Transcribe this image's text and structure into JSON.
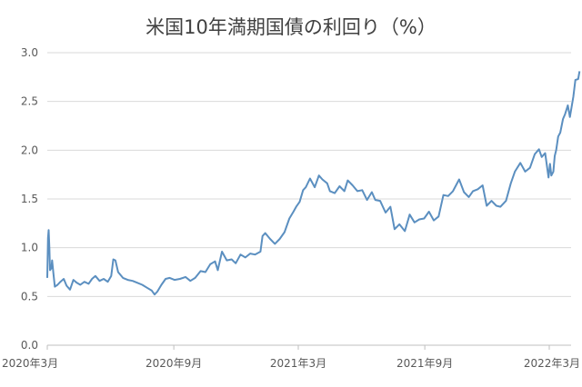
{
  "chart_data": {
    "type": "line",
    "title": "米国10年満期国債の利回り（%）",
    "xlabel": "",
    "ylabel": "",
    "ylim": [
      0,
      3.0
    ],
    "y_ticks": [
      "0.0",
      "0.5",
      "1.0",
      "1.5",
      "2.0",
      "2.5",
      "3.0"
    ],
    "x_ticks": [
      {
        "label": "2020年3月",
        "date": "2020-03-01"
      },
      {
        "label": "2020年9月",
        "date": "2020-09-01"
      },
      {
        "label": "2021年3月",
        "date": "2021-03-01"
      },
      {
        "label": "2021年9月",
        "date": "2021-09-01"
      },
      {
        "label": "2022年3月",
        "date": "2022-03-01"
      }
    ],
    "x_range": [
      "2020-03-01",
      "2022-03-12"
    ],
    "grid": "horizontal",
    "series": [
      {
        "color": "#5b8fc0",
        "points": [
          [
            "2020-03-01",
            0.69
          ],
          [
            "2020-03-02",
            1.1
          ],
          [
            "2020-03-03",
            1.18
          ],
          [
            "2020-03-04",
            1.0
          ],
          [
            "2020-03-05",
            0.77
          ],
          [
            "2020-03-07",
            0.79
          ],
          [
            "2020-03-08",
            0.87
          ],
          [
            "2020-03-10",
            0.73
          ],
          [
            "2020-03-12",
            0.6
          ],
          [
            "2020-03-16",
            0.62
          ],
          [
            "2020-03-20",
            0.65
          ],
          [
            "2020-03-25",
            0.68
          ],
          [
            "2020-03-29",
            0.61
          ],
          [
            "2020-04-03",
            0.57
          ],
          [
            "2020-04-08",
            0.67
          ],
          [
            "2020-04-13",
            0.64
          ],
          [
            "2020-04-18",
            0.62
          ],
          [
            "2020-04-24",
            0.65
          ],
          [
            "2020-04-30",
            0.63
          ],
          [
            "2020-05-05",
            0.68
          ],
          [
            "2020-05-10",
            0.71
          ],
          [
            "2020-05-16",
            0.66
          ],
          [
            "2020-05-22",
            0.68
          ],
          [
            "2020-05-28",
            0.65
          ],
          [
            "2020-06-02",
            0.71
          ],
          [
            "2020-06-05",
            0.88
          ],
          [
            "2020-06-08",
            0.87
          ],
          [
            "2020-06-12",
            0.75
          ],
          [
            "2020-06-19",
            0.69
          ],
          [
            "2020-06-26",
            0.67
          ],
          [
            "2020-07-03",
            0.66
          ],
          [
            "2020-07-10",
            0.64
          ],
          [
            "2020-07-17",
            0.62
          ],
          [
            "2020-07-24",
            0.59
          ],
          [
            "2020-07-31",
            0.56
          ],
          [
            "2020-08-04",
            0.52
          ],
          [
            "2020-08-08",
            0.55
          ],
          [
            "2020-08-14",
            0.62
          ],
          [
            "2020-08-20",
            0.68
          ],
          [
            "2020-08-26",
            0.69
          ],
          [
            "2020-09-02",
            0.67
          ],
          [
            "2020-09-10",
            0.68
          ],
          [
            "2020-09-18",
            0.7
          ],
          [
            "2020-09-25",
            0.66
          ],
          [
            "2020-10-02",
            0.69
          ],
          [
            "2020-10-10",
            0.76
          ],
          [
            "2020-10-17",
            0.75
          ],
          [
            "2020-10-24",
            0.83
          ],
          [
            "2020-10-31",
            0.86
          ],
          [
            "2020-11-04",
            0.77
          ],
          [
            "2020-11-10",
            0.96
          ],
          [
            "2020-11-17",
            0.87
          ],
          [
            "2020-11-24",
            0.88
          ],
          [
            "2020-11-30",
            0.84
          ],
          [
            "2020-12-07",
            0.93
          ],
          [
            "2020-12-14",
            0.9
          ],
          [
            "2020-12-21",
            0.94
          ],
          [
            "2020-12-28",
            0.93
          ],
          [
            "2021-01-05",
            0.96
          ],
          [
            "2021-01-08",
            1.12
          ],
          [
            "2021-01-12",
            1.15
          ],
          [
            "2021-01-19",
            1.09
          ],
          [
            "2021-01-26",
            1.04
          ],
          [
            "2021-02-02",
            1.09
          ],
          [
            "2021-02-09",
            1.16
          ],
          [
            "2021-02-16",
            1.3
          ],
          [
            "2021-02-22",
            1.37
          ],
          [
            "2021-02-26",
            1.42
          ],
          [
            "2021-03-03",
            1.47
          ],
          [
            "2021-03-08",
            1.59
          ],
          [
            "2021-03-12",
            1.62
          ],
          [
            "2021-03-18",
            1.71
          ],
          [
            "2021-03-25",
            1.62
          ],
          [
            "2021-03-31",
            1.74
          ],
          [
            "2021-04-05",
            1.7
          ],
          [
            "2021-04-12",
            1.66
          ],
          [
            "2021-04-16",
            1.58
          ],
          [
            "2021-04-23",
            1.56
          ],
          [
            "2021-04-30",
            1.63
          ],
          [
            "2021-05-07",
            1.58
          ],
          [
            "2021-05-12",
            1.69
          ],
          [
            "2021-05-19",
            1.64
          ],
          [
            "2021-05-26",
            1.58
          ],
          [
            "2021-06-02",
            1.59
          ],
          [
            "2021-06-09",
            1.49
          ],
          [
            "2021-06-16",
            1.57
          ],
          [
            "2021-06-21",
            1.49
          ],
          [
            "2021-06-28",
            1.48
          ],
          [
            "2021-07-06",
            1.36
          ],
          [
            "2021-07-13",
            1.42
          ],
          [
            "2021-07-19",
            1.19
          ],
          [
            "2021-07-26",
            1.24
          ],
          [
            "2021-08-03",
            1.17
          ],
          [
            "2021-08-10",
            1.34
          ],
          [
            "2021-08-17",
            1.26
          ],
          [
            "2021-08-24",
            1.29
          ],
          [
            "2021-08-31",
            1.3
          ],
          [
            "2021-09-07",
            1.37
          ],
          [
            "2021-09-14",
            1.28
          ],
          [
            "2021-09-21",
            1.32
          ],
          [
            "2021-09-28",
            1.54
          ],
          [
            "2021-10-05",
            1.53
          ],
          [
            "2021-10-12",
            1.58
          ],
          [
            "2021-10-21",
            1.7
          ],
          [
            "2021-10-28",
            1.57
          ],
          [
            "2021-11-04",
            1.52
          ],
          [
            "2021-11-10",
            1.58
          ],
          [
            "2021-11-17",
            1.6
          ],
          [
            "2021-11-24",
            1.64
          ],
          [
            "2021-11-30",
            1.43
          ],
          [
            "2021-12-07",
            1.48
          ],
          [
            "2021-12-14",
            1.43
          ],
          [
            "2021-12-20",
            1.42
          ],
          [
            "2021-12-28",
            1.48
          ],
          [
            "2022-01-04",
            1.66
          ],
          [
            "2022-01-10",
            1.78
          ],
          [
            "2022-01-18",
            1.87
          ],
          [
            "2022-01-25",
            1.78
          ],
          [
            "2022-02-01",
            1.82
          ],
          [
            "2022-02-08",
            1.96
          ],
          [
            "2022-02-14",
            2.01
          ],
          [
            "2022-02-18",
            1.93
          ],
          [
            "2022-02-23",
            1.97
          ],
          [
            "2022-02-28",
            1.72
          ],
          [
            "2022-03-02",
            1.86
          ],
          [
            "2022-03-04",
            1.74
          ],
          [
            "2022-03-07",
            1.78
          ],
          [
            "2022-03-09",
            1.94
          ],
          [
            "2022-03-11",
            2.0
          ],
          [
            "2022-03-14",
            2.14
          ],
          [
            "2022-03-17",
            2.18
          ],
          [
            "2022-03-21",
            2.32
          ],
          [
            "2022-03-24",
            2.37
          ],
          [
            "2022-03-28",
            2.46
          ],
          [
            "2022-03-31",
            2.34
          ],
          [
            "2022-04-05",
            2.55
          ],
          [
            "2022-04-08",
            2.72
          ],
          [
            "2022-04-12",
            2.73
          ],
          [
            "2022-04-14",
            2.81
          ]
        ]
      }
    ]
  }
}
